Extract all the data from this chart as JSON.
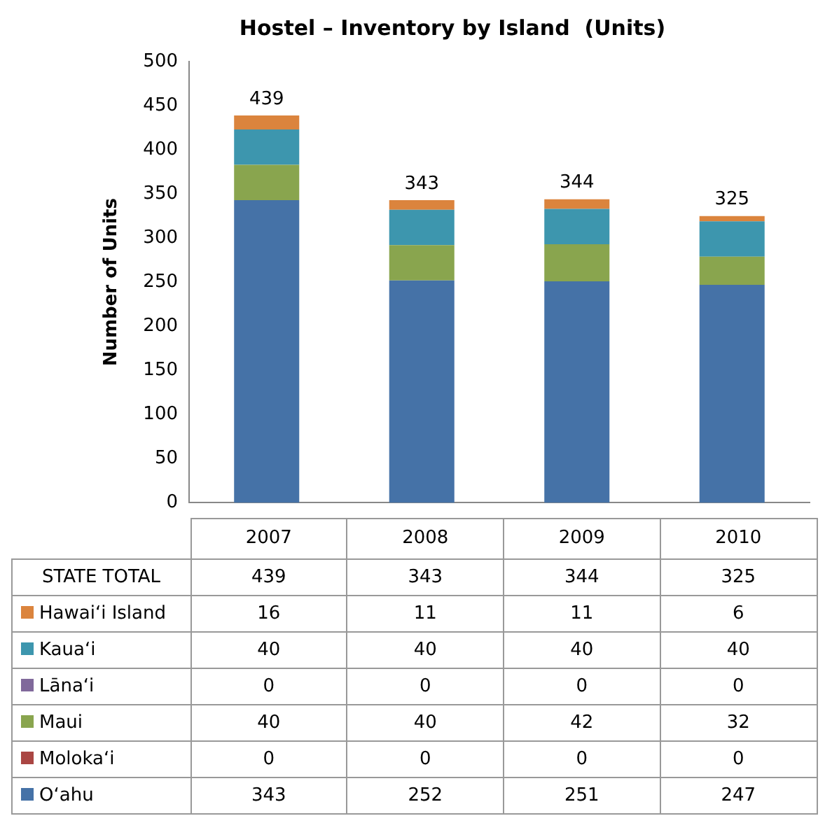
{
  "chart_data": {
    "type": "bar",
    "title": "Hostel – Inventory by Island  (Units)",
    "ylabel": "Number of Units",
    "categories": [
      "2007",
      "2008",
      "2009",
      "2010"
    ],
    "stacked": true,
    "ylim": [
      0,
      500
    ],
    "yticks": [
      0,
      50,
      100,
      150,
      200,
      250,
      300,
      350,
      400,
      450,
      500
    ],
    "grid": false,
    "legend": "bottom",
    "totals": [
      "439",
      "343",
      "344",
      "325"
    ],
    "annotations": [
      "STATE TOTAL"
    ],
    "series": [
      {
        "name": "O‘ahu",
        "color": "#4572a7",
        "values": [
          343,
          252,
          251,
          247
        ],
        "value_labels": [
          "343",
          "252",
          "251",
          "247"
        ]
      },
      {
        "name": "Moloka‘i",
        "color": "#aa4643",
        "values": [
          0,
          0,
          0,
          0
        ],
        "value_labels": [
          "0",
          "0",
          "0",
          "0"
        ]
      },
      {
        "name": "Maui",
        "color": "#89a54e",
        "values": [
          40,
          40,
          42,
          32
        ],
        "value_labels": [
          "40",
          "40",
          "42",
          "32"
        ]
      },
      {
        "name": "Lāna‘i",
        "color": "#80699b",
        "values": [
          0,
          0,
          0,
          0
        ],
        "value_labels": [
          "0",
          "0",
          "0",
          "0"
        ]
      },
      {
        "name": "Kaua‘i",
        "color": "#3d96ae",
        "values": [
          40,
          40,
          40,
          40
        ],
        "value_labels": [
          "40",
          "40",
          "40",
          "40"
        ]
      },
      {
        "name": "Hawai‘i Island",
        "color": "#db843d",
        "values": [
          16,
          11,
          11,
          6
        ],
        "value_labels": [
          "16",
          "11",
          "11",
          "6"
        ]
      }
    ]
  }
}
